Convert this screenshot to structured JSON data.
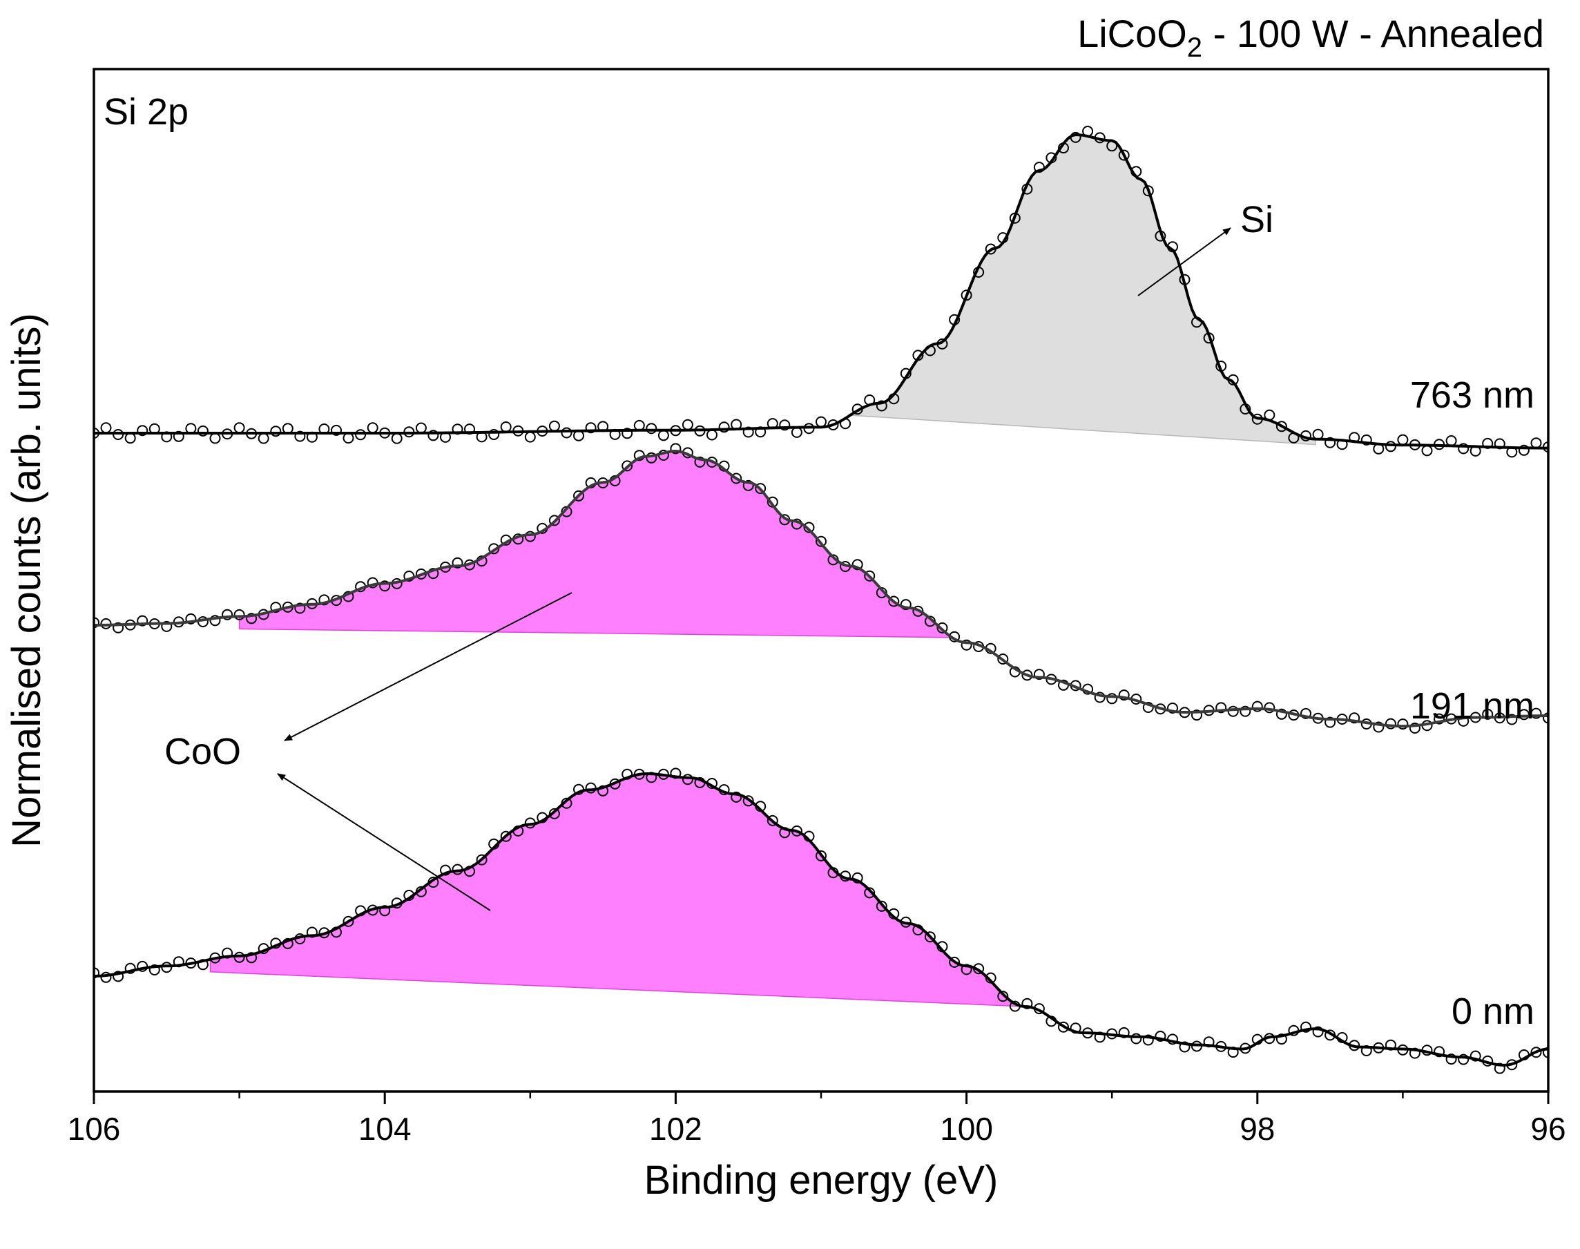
{
  "chart_data": {
    "type": "line",
    "title_main": "LiCoO",
    "title_sub": "2",
    "title_rest": " - 100 W - Annealed",
    "panel_label": "Si 2p",
    "xlabel": "Binding energy (eV)",
    "ylabel": "Normalised counts (arb. units)",
    "xlim": [
      106,
      96
    ],
    "x_ticks": [
      "106",
      "104",
      "102",
      "100",
      "98",
      "96"
    ],
    "y_ticks_shown": false,
    "series": [
      {
        "name": "763 nm",
        "line_color": "#000000",
        "points": [
          [
            106,
            0
          ],
          [
            104,
            0
          ],
          [
            102,
            0.01
          ],
          [
            101,
            0.02
          ],
          [
            100.6,
            0.1
          ],
          [
            100.2,
            0.3
          ],
          [
            99.8,
            0.62
          ],
          [
            99.5,
            0.88
          ],
          [
            99.25,
            1.0
          ],
          [
            99.0,
            0.98
          ],
          [
            98.8,
            0.85
          ],
          [
            98.6,
            0.62
          ],
          [
            98.4,
            0.38
          ],
          [
            98.2,
            0.18
          ],
          [
            98.0,
            0.05
          ],
          [
            97.6,
            -0.02
          ],
          [
            97.0,
            -0.04
          ],
          [
            96,
            -0.05
          ]
        ],
        "component": {
          "name": "Si",
          "fill": "#dedede",
          "x_start": 100.8,
          "x_end": 97.6
        }
      },
      {
        "name": "191 nm",
        "line_color": "#3a3a3a",
        "points": [
          [
            106,
            0
          ],
          [
            105.5,
            0.01
          ],
          [
            105,
            0.05
          ],
          [
            104.5,
            0.12
          ],
          [
            104,
            0.24
          ],
          [
            103.5,
            0.34
          ],
          [
            103,
            0.52
          ],
          [
            102.5,
            0.82
          ],
          [
            102.2,
            0.97
          ],
          [
            102,
            1.0
          ],
          [
            101.8,
            0.95
          ],
          [
            101.5,
            0.82
          ],
          [
            101.2,
            0.6
          ],
          [
            100.8,
            0.34
          ],
          [
            100.4,
            0.1
          ],
          [
            100,
            -0.1
          ],
          [
            99.5,
            -0.3
          ],
          [
            99,
            -0.41
          ],
          [
            98.5,
            -0.5
          ],
          [
            98,
            -0.48
          ],
          [
            97.5,
            -0.54
          ],
          [
            97,
            -0.58
          ],
          [
            96.5,
            -0.53
          ],
          [
            96,
            -0.52
          ]
        ],
        "component": {
          "name": "CoO",
          "fill": "#ff80ff",
          "x_start": 105.0,
          "x_end": 100.1
        }
      },
      {
        "name": "0 nm",
        "line_color": "#000000",
        "points": [
          [
            106,
            0
          ],
          [
            105.5,
            0.05
          ],
          [
            105,
            0.1
          ],
          [
            104.5,
            0.2
          ],
          [
            104,
            0.34
          ],
          [
            103.5,
            0.52
          ],
          [
            103,
            0.75
          ],
          [
            102.6,
            0.92
          ],
          [
            102.2,
            1.0
          ],
          [
            101.9,
            0.98
          ],
          [
            101.6,
            0.9
          ],
          [
            101.2,
            0.72
          ],
          [
            100.8,
            0.48
          ],
          [
            100.4,
            0.26
          ],
          [
            100,
            0.05
          ],
          [
            99.6,
            -0.15
          ],
          [
            99.2,
            -0.28
          ],
          [
            98.8,
            -0.3
          ],
          [
            98.4,
            -0.34
          ],
          [
            98.1,
            -0.36
          ],
          [
            97.9,
            -0.3
          ],
          [
            97.6,
            -0.26
          ],
          [
            97.3,
            -0.35
          ],
          [
            97,
            -0.36
          ],
          [
            96.6,
            -0.4
          ],
          [
            96.3,
            -0.44
          ],
          [
            96,
            -0.36
          ]
        ],
        "component": {
          "name": "CoO",
          "fill": "#ff80ff",
          "x_start": 105.2,
          "x_end": 99.6
        }
      }
    ],
    "annotations": [
      "Si",
      "CoO"
    ]
  }
}
